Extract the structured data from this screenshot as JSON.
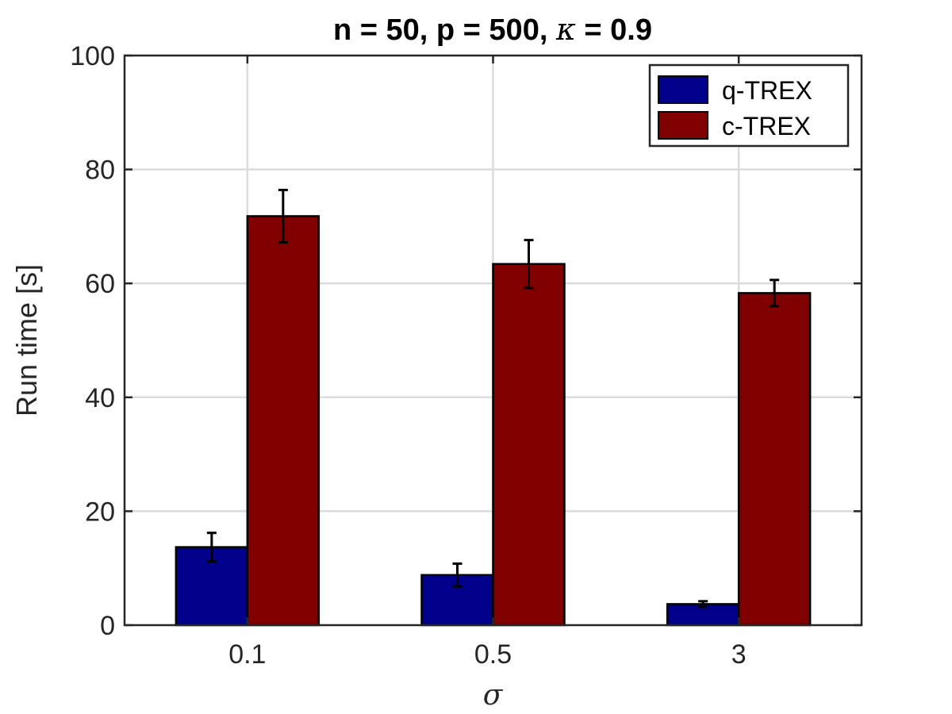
{
  "chart_data": {
    "type": "bar",
    "title_parts": {
      "prefix": "n = 50, p = 500, ",
      "symbol": "κ",
      "suffix": " = 0.9"
    },
    "xlabel": "σ",
    "ylabel": "Run time [s]",
    "categories": [
      "0.1",
      "0.5",
      "3"
    ],
    "ylim": [
      0,
      100
    ],
    "yticks": [
      "0",
      "20",
      "40",
      "60",
      "80",
      "100"
    ],
    "grid": true,
    "legend_position": "top-right",
    "series": [
      {
        "name": "q-TREX",
        "color": "#00008b",
        "values": [
          13.7,
          8.8,
          3.7
        ],
        "error": [
          2.5,
          2.0,
          0.5
        ]
      },
      {
        "name": "c-TREX",
        "color": "#800000",
        "values": [
          71.8,
          63.4,
          58.3
        ],
        "error": [
          4.6,
          4.2,
          2.3
        ]
      }
    ]
  }
}
